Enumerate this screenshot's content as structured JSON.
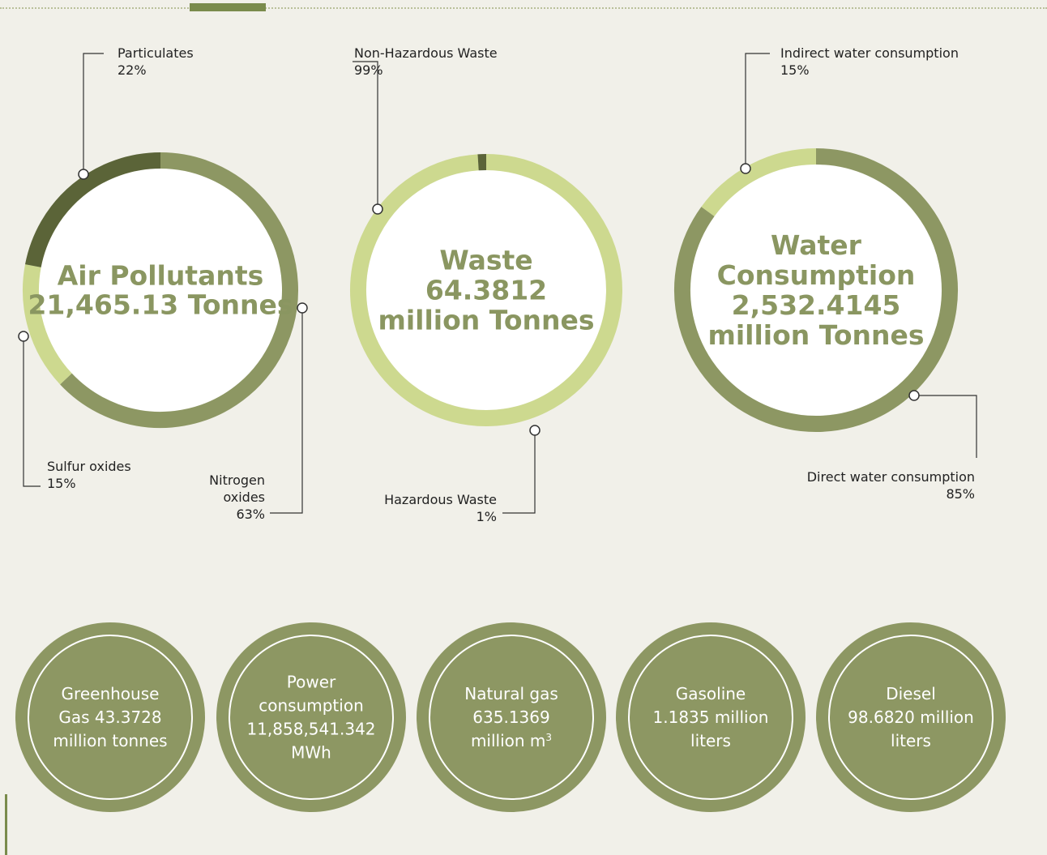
{
  "colors": {
    "background": "#f1f0e9",
    "olive": "#8d9763",
    "dark_olive": "#5b6438",
    "light_green": "#cdd98f",
    "title_text": "#8a9661",
    "stat_circle": "#8d9763",
    "leader_line": "#333333"
  },
  "chart_data": [
    {
      "type": "pie",
      "title": "Air Pollutants",
      "total": "21,465.13 Tonnes",
      "title_lines": [
        "Air Pollutants",
        "21,465.13 Tonnes"
      ],
      "slices": [
        {
          "label": "Nitrogen oxides",
          "label_lines": [
            "Nitrogen",
            "oxides"
          ],
          "value": 63,
          "value_text": "63%",
          "color": "#8d9763"
        },
        {
          "label": "Sulfur oxides",
          "label_lines": [
            "Sulfur oxides"
          ],
          "value": 15,
          "value_text": "15%",
          "color": "#cdd98f"
        },
        {
          "label": "Particulates",
          "label_lines": [
            "Particulates"
          ],
          "value": 22,
          "value_text": "22%",
          "color": "#5b6438"
        }
      ]
    },
    {
      "type": "pie",
      "title": "Waste",
      "total": "64.3812 million Tonnes",
      "title_lines": [
        "Waste",
        "64.3812",
        "million Tonnes"
      ],
      "slices": [
        {
          "label": "Non-Hazardous Waste",
          "label_lines": [
            "Non-Hazardous Waste"
          ],
          "value": 99,
          "value_text": "99%",
          "color": "#cdd98f"
        },
        {
          "label": "Hazardous Waste",
          "label_lines": [
            "Hazardous Waste"
          ],
          "value": 1,
          "value_text": "1%",
          "color": "#5b6438"
        }
      ]
    },
    {
      "type": "pie",
      "title": "Water Consumption",
      "total": "2,532.4145 million Tonnes",
      "title_lines": [
        "Water",
        "Consumption",
        "2,532.4145",
        "million Tonnes"
      ],
      "slices": [
        {
          "label": "Direct water consumption",
          "label_lines": [
            "Direct water consumption"
          ],
          "value": 85,
          "value_text": "85%",
          "color": "#8d9763"
        },
        {
          "label": "Indirect water consumption",
          "label_lines": [
            "Indirect water consumption"
          ],
          "value": 15,
          "value_text": "15%",
          "color": "#cdd98f"
        }
      ]
    }
  ],
  "stats": [
    {
      "name": "greenhouse-gas",
      "lines": [
        "Greenhouse",
        "Gas 43.3728",
        "million tonnes"
      ]
    },
    {
      "name": "power-consumption",
      "lines": [
        "Power",
        "consumption",
        "11,858,541.342",
        "MWh"
      ]
    },
    {
      "name": "natural-gas",
      "lines": [
        "Natural gas",
        "635.1369",
        "million m"
      ],
      "superscript": "3"
    },
    {
      "name": "gasoline",
      "lines": [
        "Gasoline",
        "1.1835 million",
        "liters"
      ]
    },
    {
      "name": "diesel",
      "lines": [
        "Diesel",
        "98.6820 million",
        "liters"
      ]
    }
  ]
}
